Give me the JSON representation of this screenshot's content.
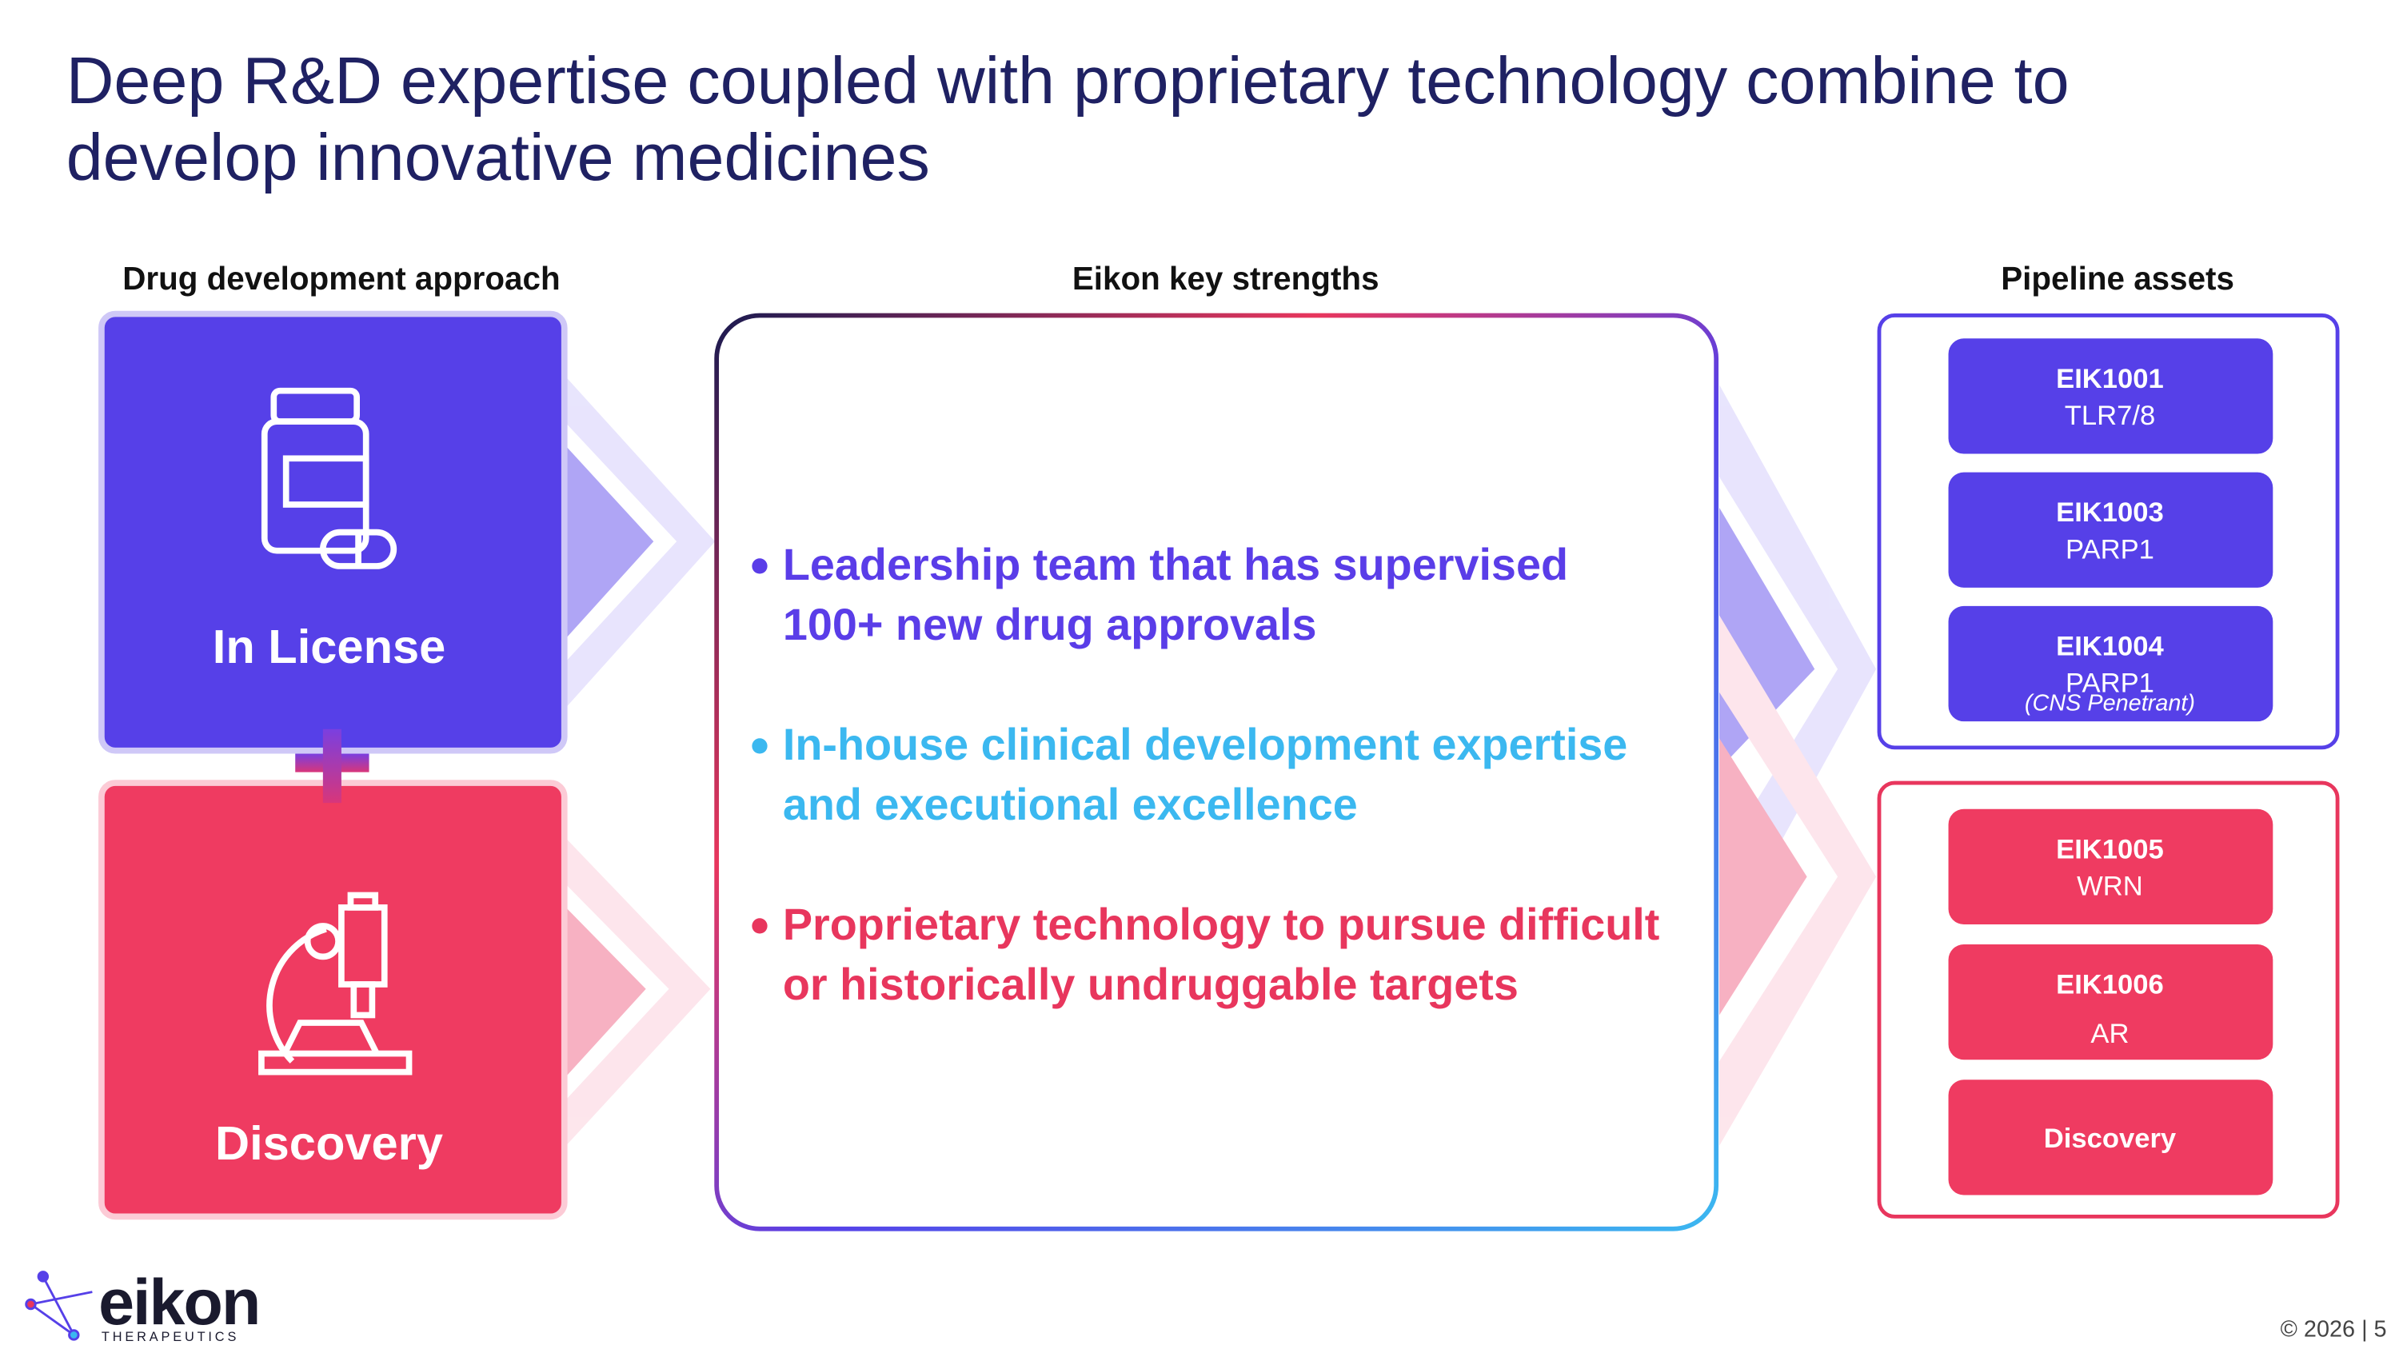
{
  "title": [
    "Deep R&D expertise coupled with proprietary technology combine to",
    "develop innovative medicines"
  ],
  "columns": [
    "Drug development approach",
    "Eikon key strengths",
    "Pipeline assets"
  ],
  "approaches": [
    "In License",
    "Discovery"
  ],
  "strengths": [
    [
      "Leadership team that has supervised",
      "100+ new drug approvals"
    ],
    [
      "In-house clinical development expertise",
      "and executional excellence"
    ],
    [
      "Proprietary technology to pursue difficult",
      "or historically undruggable targets"
    ]
  ],
  "pipeline": [
    [
      {
        "name": "EIK1001",
        "target": "TLR7/8"
      },
      {
        "name": "EIK1003",
        "target": "PARP1"
      },
      {
        "name": "EIK1004",
        "target": "PARP1",
        "note": "(CNS Penetrant)"
      }
    ],
    [
      {
        "name": "EIK1005",
        "target": "WRN"
      },
      {
        "name": "EIK1006",
        "target": "AR"
      },
      {
        "name": "Discovery"
      }
    ]
  ],
  "logo": {
    "name": "eikon",
    "tagline": "THERAPEUTICS"
  },
  "footer": "© 2026 | 5"
}
